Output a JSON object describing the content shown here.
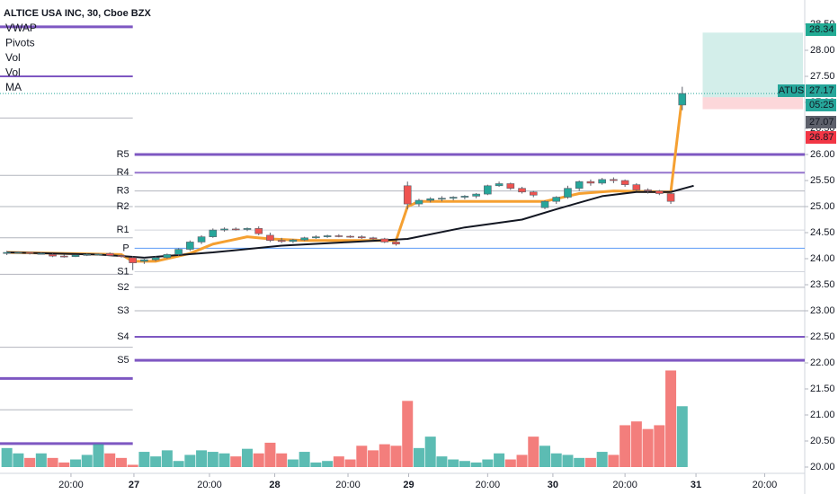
{
  "chart_data": {
    "type": "candlestick",
    "title": "ALTICE USA INC, 30, Cboe BZX",
    "legend": [
      "VWAP",
      "Pivots",
      "Vol",
      "Vol",
      "MA"
    ],
    "xlim": [
      -0.6,
      69.7
    ],
    "xticks": [
      {
        "value": 5.6,
        "label": "20:00"
      },
      {
        "value": 11.1,
        "label": "27"
      },
      {
        "value": 17.7,
        "label": "20:00"
      },
      {
        "value": 23.4,
        "label": "28"
      },
      {
        "value": 29.8,
        "label": "20:00"
      },
      {
        "value": 35.1,
        "label": "29"
      },
      {
        "value": 42,
        "label": "20:00"
      },
      {
        "value": 47.7,
        "label": "30"
      },
      {
        "value": 54,
        "label": "20:00"
      },
      {
        "value": 60.2,
        "label": "31"
      },
      {
        "value": 66.2,
        "label": "20:00"
      }
    ],
    "ylim": [
      20,
      28.5
    ],
    "yticks": [
      {
        "value": 28.5,
        "label": "28.50"
      },
      {
        "value": 28,
        "label": "28.00"
      },
      {
        "value": 27.5,
        "label": "27.50"
      },
      {
        "value": 27,
        "label": "27.00"
      },
      {
        "value": 26.5,
        "label": "26.50"
      },
      {
        "value": 26,
        "label": "26.00"
      },
      {
        "value": 25.5,
        "label": "25.50"
      },
      {
        "value": 25,
        "label": "25.00"
      },
      {
        "value": 24.5,
        "label": "24.50"
      },
      {
        "value": 24,
        "label": "24.00"
      },
      {
        "value": 23.5,
        "label": "23.50"
      },
      {
        "value": 23,
        "label": "23.00"
      },
      {
        "value": 22.5,
        "label": "22.50"
      },
      {
        "value": 22,
        "label": "22.00"
      },
      {
        "value": 21.5,
        "label": "21.50"
      },
      {
        "value": 21,
        "label": "21.00"
      },
      {
        "value": 20.5,
        "label": "20.50"
      },
      {
        "value": 20,
        "label": "20.00"
      }
    ],
    "up_color": "#26a69a",
    "down_color": "#ef5350",
    "open": [
      24.1,
      24.12,
      24.12,
      24.1,
      24.08,
      24.05,
      24.04,
      24.07,
      24.08,
      24.1,
      24.06,
      24.02,
      23.95,
      23.98,
      24.02,
      24.08,
      24.18,
      24.32,
      24.42,
      24.55,
      24.57,
      24.56,
      24.58,
      24.45,
      24.35,
      24.33,
      24.36,
      24.4,
      24.42,
      24.44,
      24.43,
      24.42,
      24.4,
      24.38,
      24.32,
      25.4,
      25.05,
      25.12,
      25.15,
      25.16,
      25.18,
      25.2,
      25.24,
      25.4,
      25.44,
      25.35,
      25.28,
      24.98,
      25.1,
      25.18,
      25.35,
      25.48,
      25.45,
      25.52,
      25.5,
      25.42,
      25.32,
      25.3,
      25.25,
      26.95
    ],
    "high": [
      24.15,
      24.14,
      24.13,
      24.12,
      24.1,
      24.08,
      24.08,
      24.1,
      24.1,
      24.12,
      24.08,
      24.05,
      24.02,
      24.05,
      24.1,
      24.2,
      24.35,
      24.45,
      24.58,
      24.6,
      24.6,
      24.6,
      24.62,
      24.5,
      24.4,
      24.38,
      24.42,
      24.45,
      24.46,
      24.47,
      24.45,
      24.45,
      24.42,
      24.4,
      24.35,
      25.48,
      25.15,
      25.18,
      25.2,
      25.2,
      25.22,
      25.26,
      25.42,
      25.48,
      25.46,
      25.38,
      25.3,
      25.12,
      25.2,
      25.4,
      25.5,
      25.52,
      25.55,
      25.56,
      25.52,
      25.45,
      25.35,
      25.32,
      25.28,
      27.3
    ],
    "low": [
      24.07,
      24.1,
      24.08,
      24.08,
      24.03,
      24.02,
      24.03,
      24.05,
      24.06,
      24.05,
      24.02,
      23.78,
      23.9,
      23.95,
      24,
      24.05,
      24.15,
      24.28,
      24.4,
      24.52,
      24.54,
      24.53,
      24.45,
      24.32,
      24.3,
      24.3,
      24.34,
      24.38,
      24.4,
      24.41,
      24.4,
      24.38,
      24.36,
      24.3,
      24.25,
      24.95,
      25,
      25.08,
      25.1,
      25.12,
      25.14,
      25.16,
      25.22,
      25.38,
      25.32,
      25.25,
      25.18,
      24.95,
      25.05,
      25.15,
      25.3,
      25.4,
      25.42,
      25.45,
      25.38,
      25.3,
      25.25,
      25.22,
      25.05,
      26.85
    ],
    "close": [
      24.12,
      24.12,
      24.1,
      24.1,
      24.05,
      24.04,
      24.07,
      24.08,
      24.09,
      24.06,
      24.04,
      23.92,
      23.98,
      24.02,
      24.08,
      24.18,
      24.32,
      24.42,
      24.55,
      24.57,
      24.56,
      24.58,
      24.48,
      24.35,
      24.33,
      24.36,
      24.4,
      24.42,
      24.44,
      24.43,
      24.42,
      24.4,
      24.38,
      24.32,
      24.28,
      25.05,
      25.12,
      25.15,
      25.16,
      25.18,
      25.2,
      25.24,
      25.4,
      25.44,
      25.35,
      25.28,
      25.22,
      25.1,
      25.18,
      25.35,
      25.48,
      25.45,
      25.52,
      25.5,
      25.42,
      25.32,
      25.3,
      25.25,
      25.1,
      27.17
    ],
    "volume_max": 150,
    "volume": [
      25,
      18,
      12,
      18,
      12,
      6,
      10,
      16,
      30,
      18,
      12,
      3,
      20,
      14,
      22,
      8,
      16,
      22,
      20,
      18,
      14,
      24,
      18,
      32,
      18,
      10,
      20,
      6,
      8,
      14,
      10,
      28,
      22,
      30,
      28,
      87,
      25,
      40,
      14,
      10,
      8,
      6,
      10,
      18,
      10,
      16,
      40,
      28,
      18,
      16,
      12,
      12,
      20,
      16,
      55,
      60,
      50,
      55,
      127,
      80
    ],
    "lines": [
      {
        "color": "#f5a031",
        "x": [
          0,
          10,
          11,
          13,
          16,
          18,
          21,
          23,
          26,
          34,
          35,
          36,
          47,
          50,
          53,
          58,
          59
        ],
        "values": [
          24.12,
          24.08,
          23.95,
          23.95,
          24.1,
          24.28,
          24.42,
          24.38,
          24.35,
          24.35,
          25.0,
          25.1,
          25.1,
          25.25,
          25.3,
          25.28,
          27.12
        ]
      },
      {
        "color": "#131722",
        "x": [
          0,
          8,
          12,
          18,
          24,
          30,
          35,
          40,
          45,
          48,
          52,
          55,
          58,
          60
        ],
        "values": [
          24.12,
          24.08,
          24.02,
          24.12,
          24.25,
          24.32,
          24.38,
          24.6,
          24.75,
          24.95,
          25.2,
          25.28,
          25.28,
          25.4
        ]
      }
    ],
    "pivots": [
      {
        "label": "R5",
        "value": 26,
        "color": "#7e57c2"
      },
      {
        "label": "R4",
        "value": 25.65,
        "color": "#9575cd"
      },
      {
        "label": "R3",
        "value": 25.3,
        "color": "#b2b5be"
      },
      {
        "label": "R2",
        "value": 25,
        "color": "#b2b5be"
      },
      {
        "label": "R1",
        "value": 24.55,
        "color": "#d1d4dc"
      },
      {
        "label": "P",
        "value": 24.2,
        "color": "#5b9cf6"
      },
      {
        "label": "S1",
        "value": 23.75,
        "color": "#d1d4dc"
      },
      {
        "label": "S2",
        "value": 23.45,
        "color": "#b2b5be"
      },
      {
        "label": "S3",
        "value": 23,
        "color": "#b2b5be"
      },
      {
        "label": "S4",
        "value": 22.5,
        "color": "#7e57c2"
      },
      {
        "label": "S5",
        "value": 22.05,
        "color": "#7e57c2"
      }
    ],
    "previous_pivots": [
      28.45,
      27.5,
      26.7,
      25.6,
      25,
      24.4,
      23.7,
      22.3,
      21.7,
      21.1,
      20.45
    ],
    "position": {
      "target": 28.34,
      "entry": 27.1,
      "stop": 26.87
    },
    "price_tags": [
      {
        "value": 28.34,
        "color": "#22ab94"
      },
      {
        "text": "ATUS",
        "value": 27.17,
        "color": "#26a69a"
      },
      {
        "text": "05:25",
        "color": "#26a69a"
      },
      {
        "value": 27.07,
        "color": "#5d606b"
      },
      {
        "value": 26.87,
        "color": "#f23645"
      }
    ]
  }
}
